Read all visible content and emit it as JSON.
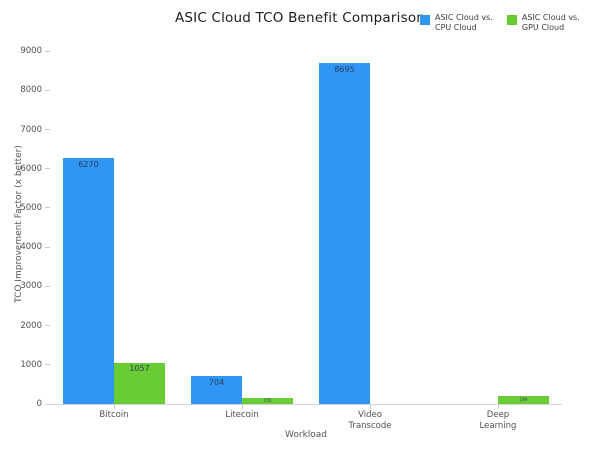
{
  "chart_data": {
    "type": "bar",
    "title": "ASIC Cloud TCO Benefit Comparison",
    "xlabel": "Workload",
    "ylabel": "TCO Improvement Factor (x better)",
    "categories": [
      "Bitcoin",
      "Litecoin",
      "Video Transcode",
      "Deep Learning"
    ],
    "category_label_lines": [
      [
        "Bitcoin"
      ],
      [
        "Litecoin"
      ],
      [
        "Video",
        "Transcode"
      ],
      [
        "Deep",
        "Learning"
      ]
    ],
    "series": [
      {
        "name": "ASIC Cloud vs. CPU Cloud",
        "legend_lines": [
          "ASIC Cloud vs.",
          "CPU Cloud"
        ],
        "color": "#3096f3",
        "values": [
          6270,
          704,
          8695,
          null
        ]
      },
      {
        "name": "ASIC Cloud vs. GPU Cloud",
        "legend_lines": [
          "ASIC Cloud vs.",
          "GPU Cloud"
        ],
        "color": "#6acc35",
        "values": [
          1057,
          155,
          null,
          199
        ]
      }
    ],
    "bar_value_labels": [
      [
        "6270",
        "704",
        "8695",
        ""
      ],
      [
        "1057",
        "155",
        "",
        "199"
      ]
    ],
    "ylim": [
      0,
      9000
    ],
    "yticks": [
      0,
      1000,
      2000,
      3000,
      4000,
      5000,
      6000,
      7000,
      8000,
      9000
    ],
    "grid": false,
    "legend_position": "top-right",
    "background": "#ffffff",
    "value_label_color": "#2a3f5f",
    "axis_text_color": "#4f4f4f"
  }
}
